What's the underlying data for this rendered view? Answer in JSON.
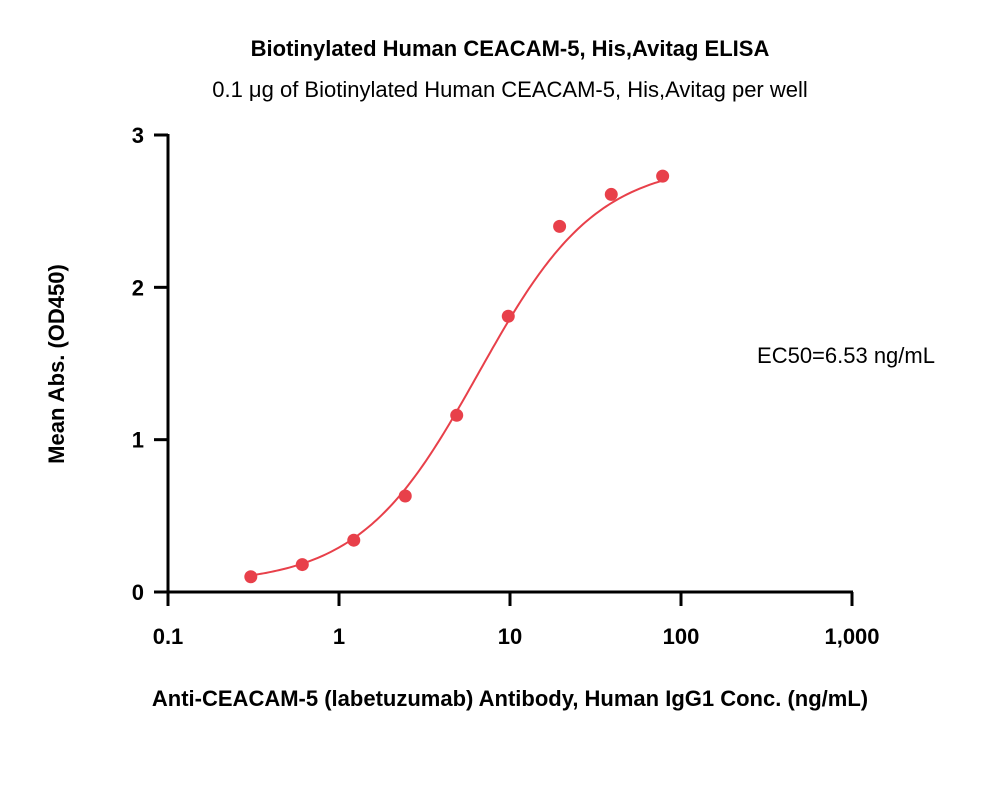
{
  "chart_data": {
    "type": "scatter",
    "title": "Biotinylated Human CEACAM-5, His,Avitag ELISA",
    "subtitle": "0.1 μg of Biotinylated Human CEACAM-5, His,Avitag per well",
    "xlabel": "Anti-CEACAM-5 (labetuzumab) Antibody, Human IgG1 Conc. (ng/mL)",
    "ylabel": "Mean Abs. (OD450)",
    "x_scale": "log",
    "xlim": [
      0.1,
      1000
    ],
    "ylim": [
      0,
      3
    ],
    "x_ticks": [
      0.1,
      1,
      10,
      100,
      1000
    ],
    "x_tick_labels": [
      "0.1",
      "1",
      "10",
      "100",
      "1,000"
    ],
    "y_ticks": [
      0,
      1,
      2,
      3
    ],
    "y_tick_labels": [
      "0",
      "1",
      "2",
      "3"
    ],
    "x": [
      0.305,
      0.61,
      1.22,
      2.44,
      4.88,
      9.77,
      19.5,
      39.1,
      78.1
    ],
    "y": [
      0.1,
      0.18,
      0.34,
      0.63,
      1.16,
      1.81,
      2.4,
      2.61,
      2.73
    ],
    "fit": "4PL",
    "ec50": 6.53,
    "annotation": "EC50=6.53 ng/mL",
    "color": "#e8404a",
    "grid": false
  }
}
